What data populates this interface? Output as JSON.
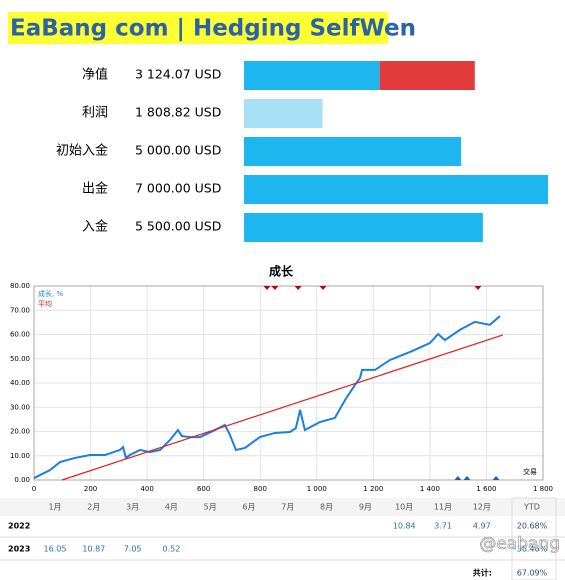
{
  "header": {
    "title": "EaBang com | Hedging SelfWen"
  },
  "summary": {
    "xlim": [
      0,
      7000
    ],
    "color": "#1eb6ef",
    "rows": [
      {
        "label": "净值",
        "value": 3124.07,
        "value_label": "3 124.07 USD",
        "overlay": 2190,
        "overlay_color": "#e23b3b"
      },
      {
        "label": "利润",
        "value": 1808.82,
        "value_label": "1 808.82 USD",
        "color": "#a8e1f6"
      },
      {
        "label": "初始入金",
        "value": 5000,
        "value_label": "5 000.00 USD"
      },
      {
        "label": "出金",
        "value": 7000,
        "value_label": "7 000.00 USD"
      },
      {
        "label": "入金",
        "value": 5500,
        "value_label": "5 500.00 USD"
      }
    ]
  },
  "chart_data": {
    "type": "line",
    "title": "成长",
    "x_label": "交易",
    "xlim": [
      0,
      1800
    ],
    "xticks": [
      0,
      200,
      400,
      600,
      800,
      {
        "value": 1000,
        "label": "1 000"
      },
      {
        "value": 1200,
        "label": "1 200"
      },
      {
        "value": 1400,
        "label": "1 400"
      },
      {
        "value": 1600,
        "label": "1 600"
      },
      {
        "value": 1800,
        "label": "1 800"
      }
    ],
    "ylim": [
      0,
      80
    ],
    "yticks": [
      {
        "value": 0,
        "label": "0.00"
      },
      {
        "value": 10,
        "label": "10.00"
      },
      {
        "value": 20,
        "label": "20.00"
      },
      {
        "value": 30,
        "label": "30.00"
      },
      {
        "value": 40,
        "label": "40.00"
      },
      {
        "value": 50,
        "label": "50.00"
      },
      {
        "value": 60,
        "label": "60.00"
      },
      {
        "value": 70,
        "label": "70.00"
      },
      {
        "value": 80,
        "label": "80.00"
      }
    ],
    "grid": true,
    "series": [
      {
        "name": "成长, %",
        "color": "#1a7fe0",
        "x": [
          0,
          57,
          92,
          145,
          198,
          251,
          304,
          315,
          325,
          339,
          375,
          410,
          446,
          481,
          509,
          523,
          552,
          587,
          640,
          675,
          693,
          714,
          746,
          799,
          852,
          905,
          926,
          941,
          958,
          1011,
          1064,
          1100,
          1135,
          1153,
          1160,
          1206,
          1259,
          1330,
          1400,
          1429,
          1453,
          1506,
          1559,
          1612,
          1648
        ],
        "values": [
          0.8,
          4.1,
          7.4,
          9.1,
          10.3,
          10.3,
          12.4,
          13.6,
          9.1,
          10.3,
          12.4,
          11.5,
          12.4,
          16.5,
          20.6,
          18.1,
          17.7,
          17.7,
          20.6,
          22.7,
          18.6,
          12.4,
          13.2,
          17.7,
          19.4,
          19.8,
          21.4,
          28.9,
          20.6,
          23.9,
          25.6,
          33,
          39.2,
          42.1,
          45.4,
          45.4,
          49.5,
          52.8,
          56.5,
          60.2,
          57.7,
          61.9,
          65.2,
          64,
          67.6
        ]
      },
      {
        "name": "平均",
        "color": "#e02020",
        "x": [
          99,
          1658
        ],
        "values": [
          0,
          59.8
        ]
      }
    ],
    "markers_top": {
      "color": "#c00000",
      "x": [
        824,
        852,
        934,
        1022,
        1570
      ]
    },
    "markers_bottom": {
      "color": "#1a5fb4",
      "x": [
        1499,
        1531,
        1634
      ]
    }
  },
  "table": {
    "columns": [
      "1月",
      "2月",
      "3月",
      "4月",
      "5月",
      "6月",
      "7月",
      "8月",
      "9月",
      "10月",
      "11月",
      "12月",
      "YTD"
    ],
    "rows": [
      {
        "year": "2022",
        "cells": [
          null,
          null,
          null,
          null,
          null,
          null,
          null,
          null,
          null,
          "10.84",
          "3.71",
          "4.97",
          "20.68%"
        ]
      },
      {
        "year": "2023",
        "cells": [
          "16.05",
          "10.87",
          "7.05",
          "0.52",
          null,
          null,
          null,
          null,
          null,
          null,
          null,
          null,
          "38.46%"
        ]
      }
    ],
    "total_label": "共计:",
    "total": "67.09%"
  },
  "watermark": "@eabang"
}
